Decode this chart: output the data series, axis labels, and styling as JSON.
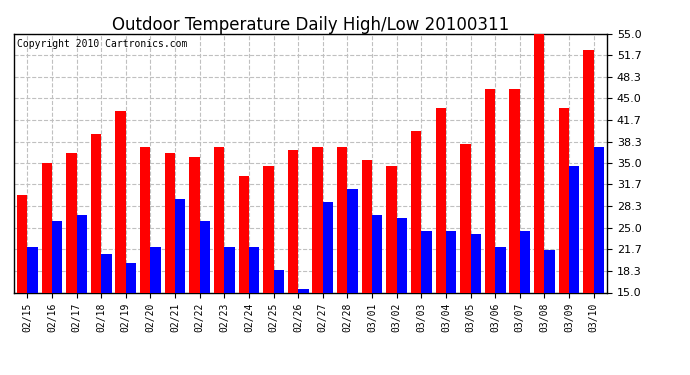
{
  "title": "Outdoor Temperature Daily High/Low 20100311",
  "copyright": "Copyright 2010 Cartronics.com",
  "dates": [
    "02/15",
    "02/16",
    "02/17",
    "02/18",
    "02/19",
    "02/20",
    "02/21",
    "02/22",
    "02/23",
    "02/24",
    "02/25",
    "02/26",
    "02/27",
    "02/28",
    "03/01",
    "03/02",
    "03/03",
    "03/04",
    "03/05",
    "03/06",
    "03/07",
    "03/08",
    "03/09",
    "03/10"
  ],
  "highs": [
    30.0,
    35.0,
    36.5,
    39.5,
    43.0,
    37.5,
    36.5,
    36.0,
    37.5,
    33.0,
    34.5,
    37.0,
    37.5,
    37.5,
    35.5,
    34.5,
    40.0,
    43.5,
    38.0,
    46.5,
    46.5,
    55.0,
    43.5,
    52.5
  ],
  "lows": [
    22.0,
    26.0,
    27.0,
    21.0,
    19.5,
    22.0,
    29.5,
    26.0,
    22.0,
    22.0,
    18.5,
    15.5,
    29.0,
    31.0,
    27.0,
    26.5,
    24.5,
    24.5,
    24.0,
    22.0,
    24.5,
    21.5,
    34.5,
    37.5
  ],
  "ymin": 15.0,
  "ylim": [
    15.0,
    55.0
  ],
  "yticks": [
    15.0,
    18.3,
    21.7,
    25.0,
    28.3,
    31.7,
    35.0,
    38.3,
    41.7,
    45.0,
    48.3,
    51.7,
    55.0
  ],
  "bar_width": 0.42,
  "high_color": "#ff0000",
  "low_color": "#0000ff",
  "bg_color": "#ffffff",
  "grid_color": "#c0c0c0",
  "title_fontsize": 12,
  "copyright_fontsize": 7,
  "tick_fontsize": 7,
  "ytick_fontsize": 8
}
